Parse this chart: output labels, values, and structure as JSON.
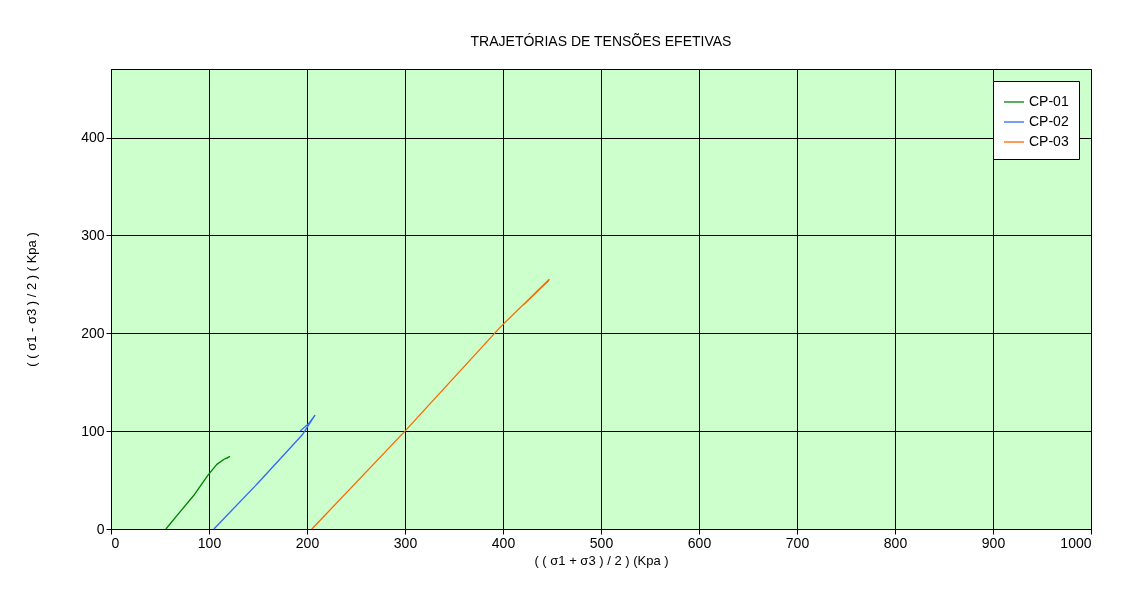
{
  "chart_data": {
    "type": "line",
    "title": "TRAJETÓRIAS DE TENSÕES EFETIVAS",
    "xlabel": "( ( σ1  + σ3 ) / 2 )  (Kpa )",
    "ylabel": "( ( σ1 - σ3 ) / 2 ) ( Kpa )",
    "series": [
      {
        "name": "CP-01",
        "color": "#008000",
        "x": [
          56,
          70,
          85,
          99,
          108,
          115,
          121,
          118
        ],
        "values": [
          0,
          17,
          35,
          55,
          66,
          71,
          74,
          72
        ]
      },
      {
        "name": "CP-02",
        "color": "#3366ff",
        "x": [
          105,
          150,
          195,
          208,
          202,
          193
        ],
        "values": [
          0,
          47,
          96,
          116,
          108,
          100
        ]
      },
      {
        "name": "CP-03",
        "color": "#ff6600",
        "x": [
          205,
          300,
          397,
          447,
          421,
          447
        ],
        "values": [
          0,
          100,
          206,
          255,
          229,
          254
        ]
      }
    ],
    "xlim": [
      0,
      1000
    ],
    "ylim": [
      0,
      470
    ],
    "xticks": [
      0,
      100,
      200,
      300,
      400,
      500,
      600,
      700,
      800,
      900,
      1000
    ],
    "yticks": [
      0,
      100,
      200,
      300,
      400
    ],
    "grid": true,
    "legend": "top right",
    "marker": "none",
    "line_style": "solid"
  }
}
